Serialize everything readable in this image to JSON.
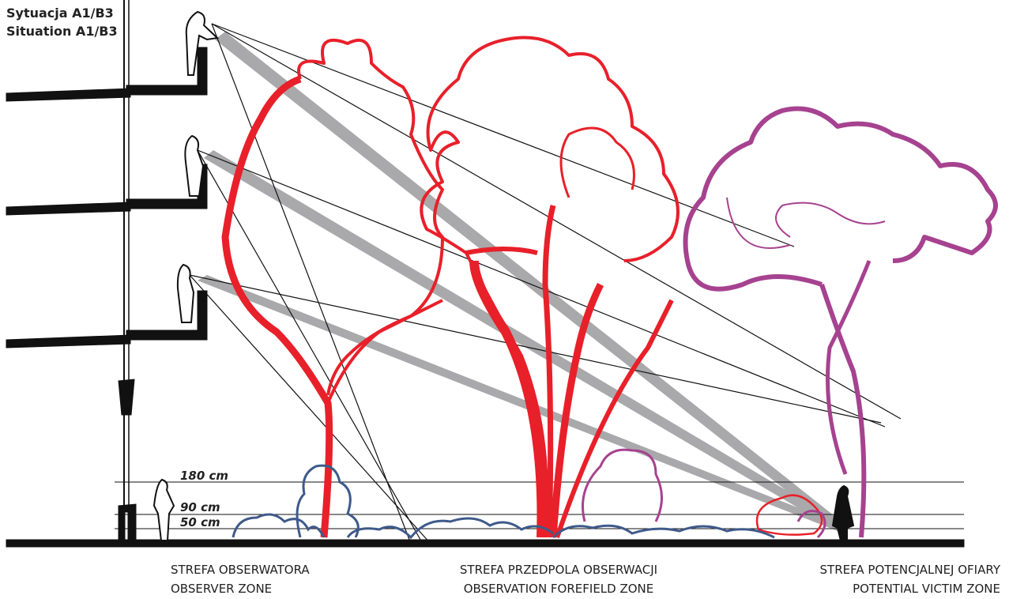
{
  "title": {
    "pl": "Sytuacja A1/B3",
    "en": "Situation A1/B3"
  },
  "height_lines": [
    {
      "label": "180 cm"
    },
    {
      "label": "90 cm"
    },
    {
      "label": "50 cm"
    }
  ],
  "zones": [
    {
      "pl": "STREFA OBSERWATORA",
      "en": "OBSERVER ZONE"
    },
    {
      "pl": "STREFA PRZEDPOLA OBSERWACJI",
      "en": "OBSERVATION FOREFIELD ZONE"
    },
    {
      "pl": "STREFA POTENCJALNEJ OFIARY",
      "en": "POTENTIAL VICTIM ZONE"
    }
  ]
}
